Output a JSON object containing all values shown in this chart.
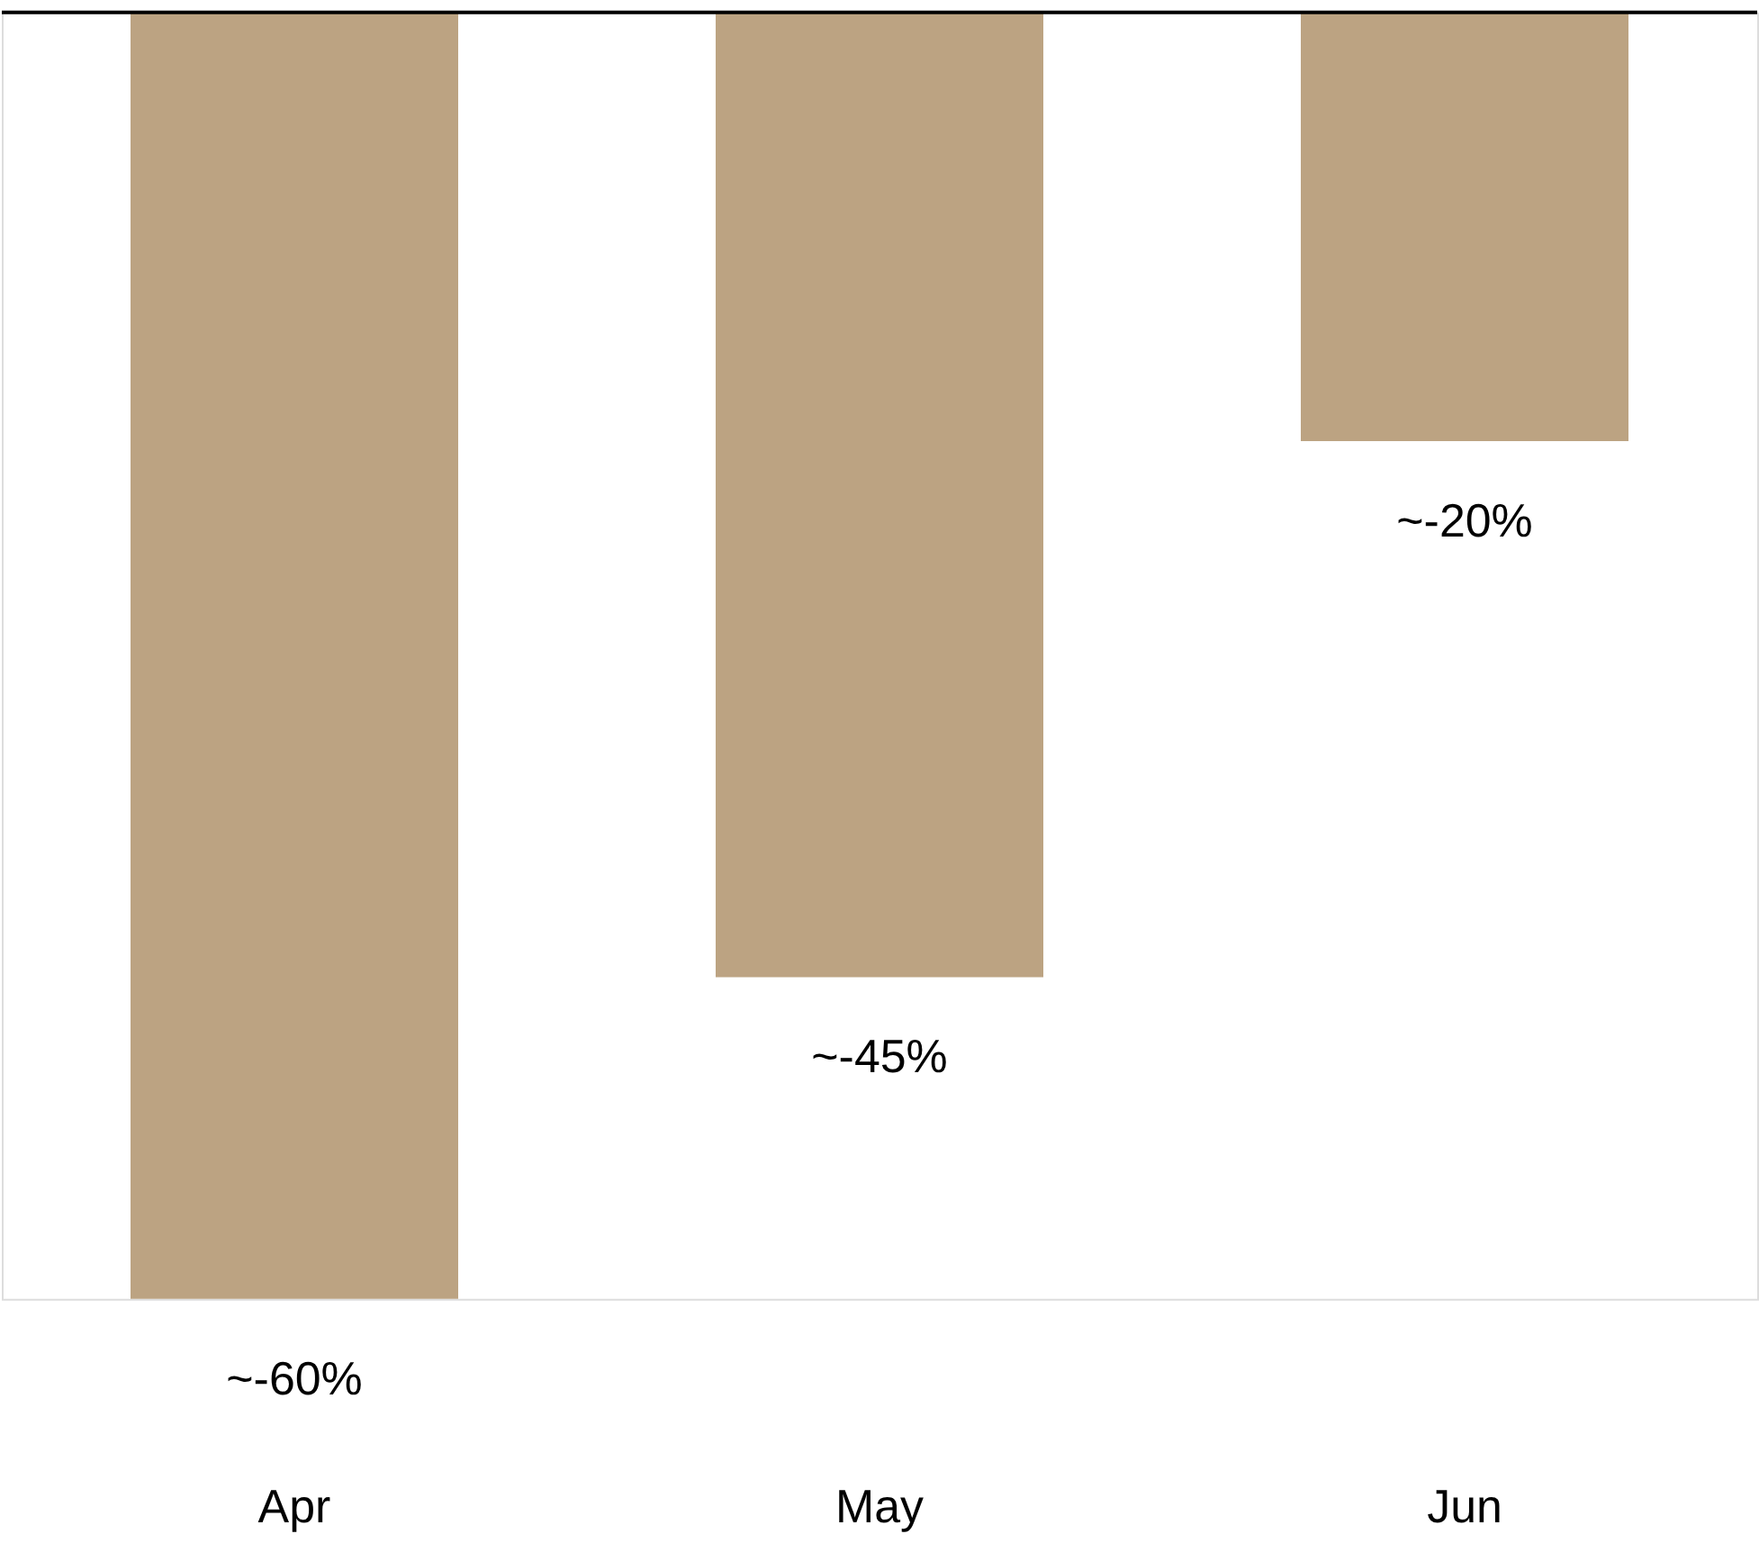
{
  "chart_data": {
    "type": "bar",
    "categories": [
      "Apr",
      "May",
      "Jun"
    ],
    "values": [
      -60,
      -45,
      -20
    ],
    "color": "#bca382",
    "value_labels": [
      "~-60%",
      "~-45%",
      "~-20%"
    ],
    "grid": false,
    "tick_labels": "x"
  }
}
